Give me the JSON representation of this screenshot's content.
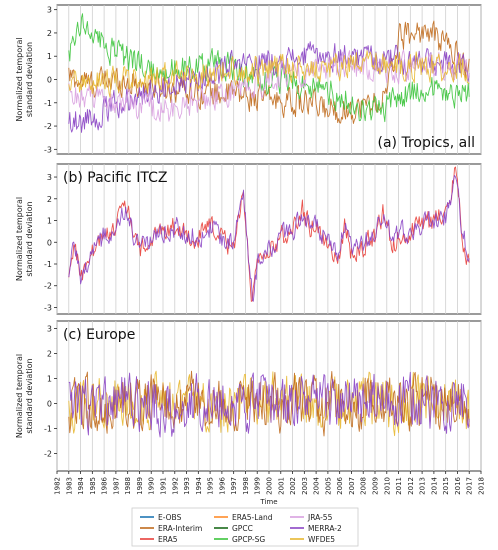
{
  "chart_data": {
    "type": "line",
    "xlabel": "Time",
    "x_ticks": [
      "1982",
      "1983",
      "1984",
      "1985",
      "1986",
      "1987",
      "1988",
      "1989",
      "1990",
      "1991",
      "1992",
      "1993",
      "1994",
      "1995",
      "1996",
      "1997",
      "1998",
      "1999",
      "2000",
      "2001",
      "2002",
      "2003",
      "2004",
      "2005",
      "2006",
      "2007",
      "2008",
      "2009",
      "2010",
      "2011",
      "2012",
      "2013",
      "2014",
      "2015",
      "2016",
      "2017",
      "2018"
    ],
    "xlim": [
      1982,
      2018
    ],
    "grid": "vertical",
    "legend_placement": "bottom",
    "legend": [
      {
        "name": "E-OBS",
        "color": "#1f77b4"
      },
      {
        "name": "ERA-Interim",
        "color": "#c06a1c"
      },
      {
        "name": "ERA5",
        "color": "#e8403a"
      },
      {
        "name": "ERA5-Land",
        "color": "#ff8c2a"
      },
      {
        "name": "GPCC",
        "color": "#1a6b1a"
      },
      {
        "name": "GPCP-SG",
        "color": "#3cc43c"
      },
      {
        "name": "JRA-55",
        "color": "#d9a0e0"
      },
      {
        "name": "MERRA-2",
        "color": "#8a44c4"
      },
      {
        "name": "WFDE5",
        "color": "#e8b830"
      }
    ],
    "panels": [
      {
        "title": "(a) Tropics, all",
        "ylabel": "Normalized temporal\nstandard deviation",
        "ylim": [
          -3.2,
          3.2
        ],
        "y_ticks": [
          -3,
          -2,
          -1,
          0,
          1,
          2,
          3
        ],
        "series": [
          {
            "name": "ERA-Interim",
            "color": "#c06a1c",
            "x": [
              1983,
              1985,
              1987,
              1989,
              1991,
              1993,
              1995,
              1997,
              1999,
              2001,
              2003,
              2005,
              2007,
              2009,
              2010,
              2011,
              2013,
              2015,
              2017
            ],
            "y": [
              0.1,
              -0.2,
              0.0,
              -0.2,
              -0.3,
              -0.4,
              -0.6,
              -0.6,
              -0.8,
              -0.9,
              -1.0,
              -1.3,
              -1.3,
              -1.0,
              -0.7,
              1.8,
              2.1,
              1.6,
              0.5
            ]
          },
          {
            "name": "GPCP-SG",
            "color": "#3cc43c",
            "x": [
              1983,
              1984,
              1986,
              1988,
              1990,
              1992,
              1994,
              1996,
              1998,
              2000,
              2002,
              2004,
              2006,
              2008,
              2010,
              2012,
              2014,
              2016,
              2017
            ],
            "y": [
              1.2,
              2.6,
              1.4,
              0.9,
              0.5,
              0.4,
              0.6,
              0.7,
              0.2,
              -0.1,
              -0.1,
              -0.4,
              -0.7,
              -1.3,
              -1.2,
              -0.5,
              -0.3,
              -0.7,
              -0.5
            ]
          },
          {
            "name": "MERRA-2",
            "color": "#8a44c4",
            "x": [
              1983,
              1984,
              1986,
              1988,
              1990,
              1992,
              1994,
              1996,
              1998,
              2000,
              2002,
              2004,
              2006,
              2008,
              2010,
              2012,
              2014,
              2016,
              2017
            ],
            "y": [
              -1.6,
              -1.8,
              -1.4,
              -0.8,
              -0.5,
              -0.2,
              0.1,
              0.4,
              0.6,
              0.8,
              0.9,
              1.0,
              1.0,
              1.0,
              0.9,
              0.8,
              0.7,
              0.5,
              0.4
            ]
          },
          {
            "name": "JRA-55",
            "color": "#d9a0e0",
            "x": [
              1983,
              1985,
              1987,
              1989,
              1991,
              1993,
              1995,
              1997,
              1999,
              2001,
              2003,
              2005,
              2007,
              2009,
              2011,
              2013,
              2015,
              2017
            ],
            "y": [
              -0.6,
              -0.8,
              -1.0,
              -1.2,
              -1.4,
              -1.0,
              -0.8,
              -0.4,
              -0.2,
              0.2,
              0.3,
              0.4,
              0.5,
              0.6,
              0.5,
              0.6,
              0.5,
              0.5
            ]
          },
          {
            "name": "WFDE5",
            "color": "#e8b830",
            "x": [
              1983,
              1985,
              1987,
              1989,
              1991,
              1993,
              1995,
              1997,
              1999,
              2001,
              2003,
              2005,
              2007,
              2009,
              2011,
              2013,
              2015,
              2017
            ],
            "y": [
              -0.3,
              -0.2,
              -0.1,
              0.0,
              0.1,
              0.2,
              0.3,
              0.4,
              0.4,
              0.5,
              0.5,
              0.5,
              0.6,
              0.6,
              0.6,
              0.6,
              0.5,
              0.5
            ]
          }
        ]
      },
      {
        "title": "(b) Pacific ITCZ",
        "ylabel": "Normalized temporal\nstandard deviation",
        "ylim": [
          -3.3,
          3.6
        ],
        "y_ticks": [
          -3,
          -2,
          -1,
          0,
          1,
          2,
          3
        ],
        "series": [
          {
            "name": "ERA5",
            "color": "#e8403a",
            "x": [
              1983,
              1983.5,
              1984,
              1985,
              1986,
              1987,
              1987.8,
              1988.5,
              1989,
              1990,
              1991,
              1992,
              1993,
              1994,
              1995,
              1996,
              1997,
              1997.8,
              1998.2,
              1998.6,
              1999,
              2000,
              2001,
              2002,
              2002.8,
              2003.5,
              2004,
              2005,
              2005.8,
              2006.5,
              2007,
              2008,
              2009,
              2009.8,
              2010.5,
              2011,
              2012,
              2013,
              2014,
              2015,
              2015.8,
              2016.5,
              2017
            ],
            "y": [
              -1.8,
              0.2,
              -1.7,
              -0.5,
              0.2,
              0.9,
              1.8,
              0.5,
              -0.4,
              0.0,
              0.6,
              0.8,
              0.3,
              0.2,
              0.8,
              0.1,
              -0.2,
              2.5,
              -0.4,
              -2.8,
              -1.2,
              -0.5,
              0.2,
              0.6,
              1.6,
              0.6,
              0.9,
              -0.2,
              -0.8,
              0.8,
              -0.6,
              -0.2,
              0.3,
              1.5,
              -0.2,
              0.3,
              0.4,
              0.9,
              1.0,
              1.5,
              3.2,
              0.1,
              -1.0
            ]
          },
          {
            "name": "MERRA-2",
            "color": "#8a44c4",
            "x": [
              1983,
              1983.5,
              1984,
              1985,
              1986,
              1987,
              1987.8,
              1988.5,
              1989,
              1990,
              1991,
              1992,
              1993,
              1994,
              1995,
              1996,
              1997,
              1997.8,
              1998.2,
              1998.6,
              1999,
              2000,
              2001,
              2002,
              2002.8,
              2003.5,
              2004,
              2005,
              2005.8,
              2006.5,
              2007,
              2008,
              2009,
              2009.8,
              2010.5,
              2011,
              2012,
              2013,
              2014,
              2015,
              2015.8,
              2016.5,
              2017
            ],
            "y": [
              -1.5,
              0.0,
              -1.5,
              -0.4,
              0.3,
              0.8,
              1.6,
              0.4,
              -0.3,
              0.1,
              0.5,
              0.7,
              0.4,
              0.3,
              0.6,
              0.2,
              -0.1,
              2.2,
              -0.3,
              -2.5,
              -1.0,
              -0.4,
              0.3,
              0.5,
              1.4,
              0.5,
              0.8,
              -0.1,
              -0.6,
              0.7,
              -0.5,
              -0.1,
              0.4,
              1.3,
              -0.1,
              0.4,
              0.5,
              0.8,
              0.9,
              1.3,
              2.9,
              0.3,
              -0.8
            ]
          }
        ]
      },
      {
        "title": "(c) Europe",
        "ylabel": "Normalized temporal\nstandard deviation",
        "ylim": [
          -2.7,
          3.3
        ],
        "y_ticks": [
          -2,
          -1,
          0,
          1,
          2,
          3
        ],
        "series": [
          {
            "name": "WFDE5",
            "color": "#e8b830",
            "x": [
              1983,
              1984,
              1985,
              1986,
              1987,
              1988,
              1989,
              1990,
              1991,
              1992,
              1993,
              1994,
              1995,
              1996,
              1997,
              1998,
              1999,
              2000,
              2001,
              2002,
              2003,
              2004,
              2005,
              2006,
              2007,
              2008,
              2009,
              2010,
              2011,
              2012,
              2013,
              2014,
              2015,
              2016,
              2017
            ],
            "y": [
              0.0,
              0.2,
              -0.1,
              0.1,
              0.0,
              0.2,
              -0.1,
              0.1,
              0.0,
              -0.1,
              0.1,
              0.2,
              0.0,
              -0.1,
              0.1,
              0.0,
              0.1,
              0.2,
              0.0,
              0.1,
              0.1,
              -0.1,
              0.0,
              0.1,
              -0.1,
              0.0,
              0.1,
              0.0,
              -0.1,
              0.1,
              0.0,
              0.1,
              0.2,
              0.0,
              0.0
            ]
          },
          {
            "name": "ERA-Interim",
            "color": "#c06a1c",
            "x": [
              1983,
              1984,
              1985,
              1986,
              1987,
              1988,
              1989,
              1990,
              1991,
              1992,
              1993,
              1994,
              1995,
              1996,
              1997,
              1998,
              1999,
              2000,
              2001,
              2002,
              2003,
              2004,
              2005,
              2006,
              2007,
              2008,
              2009,
              2010,
              2011,
              2012,
              2013,
              2014,
              2015,
              2016,
              2017
            ],
            "y": [
              0.0,
              0.1,
              -0.1,
              0.1,
              0.0,
              0.2,
              -0.1,
              0.1,
              0.0,
              -0.1,
              0.1,
              0.2,
              0.0,
              -0.1,
              0.1,
              0.0,
              0.1,
              0.2,
              0.0,
              0.1,
              0.1,
              -0.1,
              0.0,
              0.1,
              -0.1,
              0.0,
              0.1,
              0.0,
              -0.1,
              0.1,
              0.0,
              0.1,
              0.2,
              0.0,
              0.0
            ]
          },
          {
            "name": "MERRA-2",
            "color": "#8a44c4",
            "x": [
              1983,
              1984,
              1985,
              1986,
              1987,
              1988,
              1989,
              1990,
              1991,
              1992,
              1993,
              1994,
              1995,
              1996,
              1997,
              1998,
              1999,
              2000,
              2001,
              2002,
              2003,
              2004,
              2005,
              2006,
              2007,
              2008,
              2009,
              2010,
              2011,
              2012,
              2013,
              2014,
              2015,
              2016,
              2017
            ],
            "y": [
              0.0,
              0.2,
              -0.1,
              0.1,
              0.0,
              0.2,
              -0.1,
              0.1,
              0.0,
              -0.1,
              0.1,
              0.2,
              0.0,
              -0.1,
              0.1,
              0.0,
              0.1,
              0.2,
              0.0,
              0.1,
              0.1,
              -0.1,
              0.0,
              0.1,
              -0.1,
              0.0,
              0.1,
              0.0,
              -0.1,
              0.1,
              0.0,
              0.1,
              0.2,
              0.0,
              0.0
            ]
          }
        ]
      }
    ]
  }
}
